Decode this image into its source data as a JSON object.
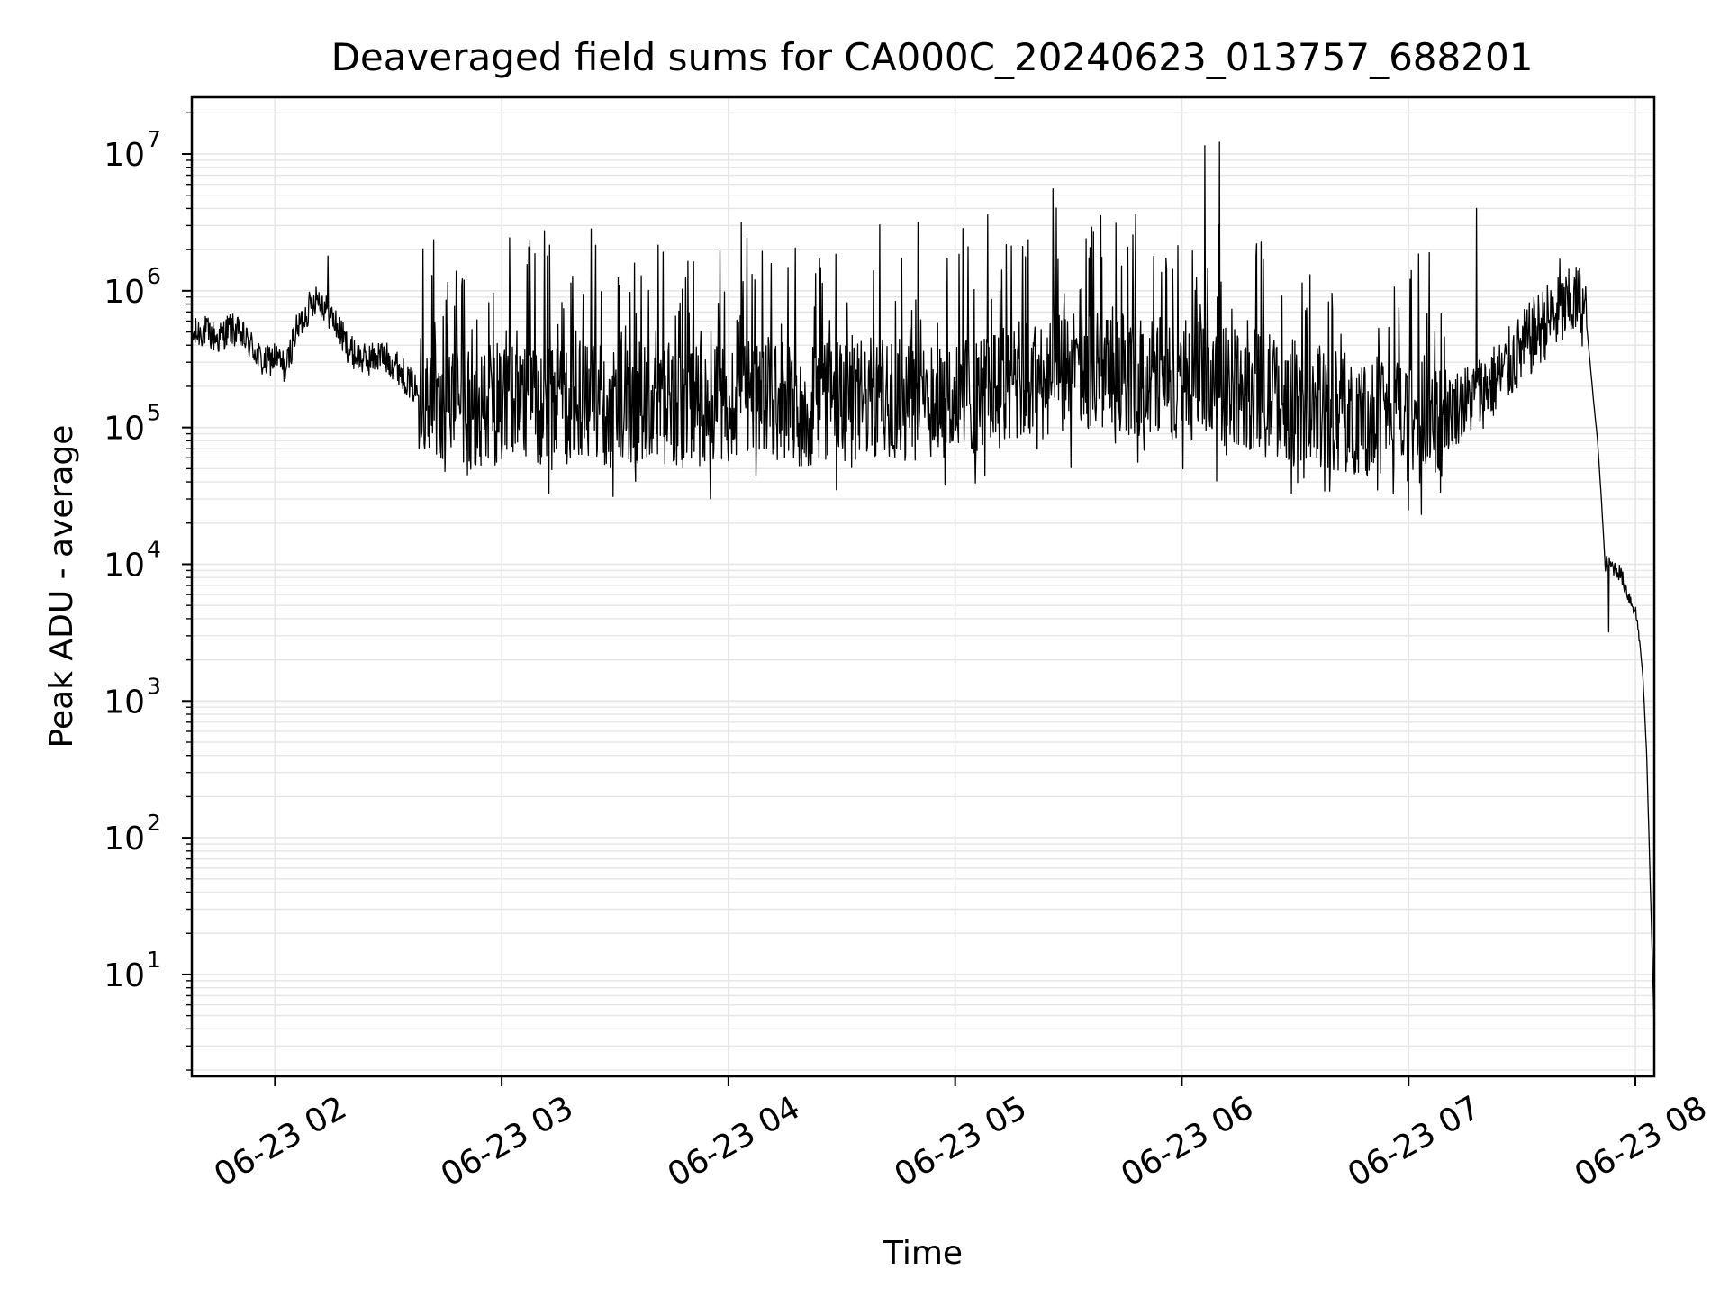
{
  "chart_data": {
    "type": "line",
    "title": "Deaveraged field sums for CA000C_20240623_013757_688201",
    "xlabel": "Time",
    "ylabel": "Peak ADU - average",
    "yscale": "log",
    "ylim": [
      1.8,
      26000000
    ],
    "xlim": [
      "2024-06-23T01:38:00",
      "2024-06-23T08:05:00"
    ],
    "grid": true,
    "line_color": "#000000",
    "grid_color": "#e6e6e6",
    "x_ticks": [
      {
        "label": "06-23 02",
        "time": "2024-06-23T02:00:00"
      },
      {
        "label": "06-23 03",
        "time": "2024-06-23T03:00:00"
      },
      {
        "label": "06-23 04",
        "time": "2024-06-23T04:00:00"
      },
      {
        "label": "06-23 05",
        "time": "2024-06-23T05:00:00"
      },
      {
        "label": "06-23 06",
        "time": "2024-06-23T06:00:00"
      },
      {
        "label": "06-23 07",
        "time": "2024-06-23T07:00:00"
      },
      {
        "label": "06-23 08",
        "time": "2024-06-23T08:00:00"
      }
    ],
    "y_ticks": [
      {
        "base": "10",
        "exp": "1",
        "value": 10
      },
      {
        "base": "10",
        "exp": "2",
        "value": 100
      },
      {
        "base": "10",
        "exp": "3",
        "value": 1000
      },
      {
        "base": "10",
        "exp": "4",
        "value": 10000
      },
      {
        "base": "10",
        "exp": "5",
        "value": 100000
      },
      {
        "base": "10",
        "exp": "6",
        "value": 1000000
      },
      {
        "base": "10",
        "exp": "7",
        "value": 10000000
      }
    ],
    "series": [
      {
        "points": [
          [
            "2024-06-23T01:38:00",
            450000
          ],
          [
            "2024-06-23T01:41:00",
            500000
          ],
          [
            "2024-06-23T01:45:00",
            430000
          ],
          [
            "2024-06-23T01:48:00",
            520000
          ],
          [
            "2024-06-23T01:51:00",
            460000
          ],
          [
            "2024-06-23T01:54:00",
            380000
          ],
          [
            "2024-06-23T01:57:00",
            280000
          ],
          [
            "2024-06-23T02:00:00",
            320000
          ],
          [
            "2024-06-23T02:03:00",
            260000
          ],
          [
            "2024-06-23T02:05:00",
            450000
          ],
          [
            "2024-06-23T02:08:00",
            650000
          ],
          [
            "2024-06-23T02:11:00",
            900000
          ],
          [
            "2024-06-23T02:14:00",
            700000
          ],
          [
            "2024-06-23T02:17:00",
            500000
          ],
          [
            "2024-06-23T02:20:00",
            350000
          ],
          [
            "2024-06-23T02:24:00",
            300000
          ],
          [
            "2024-06-23T02:28:00",
            330000
          ],
          [
            "2024-06-23T02:32:00",
            280000
          ],
          [
            "2024-06-23T02:36:00",
            200000
          ],
          [
            "2024-06-23T02:40:00",
            150000
          ],
          [
            "2024-06-23T02:45:00",
            120000
          ],
          [
            "2024-06-23T02:50:00",
            110000
          ],
          [
            "2024-06-23T03:00:00",
            140000
          ],
          [
            "2024-06-23T03:10:00",
            130000
          ],
          [
            "2024-06-23T03:20:00",
            150000
          ],
          [
            "2024-06-23T03:30:00",
            130000
          ],
          [
            "2024-06-23T03:40:00",
            140000
          ],
          [
            "2024-06-23T03:50:00",
            130000
          ],
          [
            "2024-06-23T04:00:00",
            140000
          ],
          [
            "2024-06-23T04:10:00",
            150000
          ],
          [
            "2024-06-23T04:20:00",
            130000
          ],
          [
            "2024-06-23T04:30:00",
            140000
          ],
          [
            "2024-06-23T04:40:00",
            150000
          ],
          [
            "2024-06-23T04:50:00",
            140000
          ],
          [
            "2024-06-23T05:00:00",
            150000
          ],
          [
            "2024-06-23T05:10:00",
            170000
          ],
          [
            "2024-06-23T05:20:00",
            200000
          ],
          [
            "2024-06-23T05:30:00",
            220000
          ],
          [
            "2024-06-23T05:40:00",
            230000
          ],
          [
            "2024-06-23T05:50:00",
            220000
          ],
          [
            "2024-06-23T06:00:00",
            200000
          ],
          [
            "2024-06-23T06:10:00",
            180000
          ],
          [
            "2024-06-23T06:20:00",
            170000
          ],
          [
            "2024-06-23T06:30:00",
            140000
          ],
          [
            "2024-06-23T06:40:00",
            120000
          ],
          [
            "2024-06-23T06:50:00",
            110000
          ],
          [
            "2024-06-23T07:00:00",
            100000
          ],
          [
            "2024-06-23T07:07:00",
            95000
          ],
          [
            "2024-06-23T07:12:00",
            130000
          ],
          [
            "2024-06-23T07:18:00",
            160000
          ],
          [
            "2024-06-23T07:24:00",
            220000
          ],
          [
            "2024-06-23T07:30:00",
            350000
          ],
          [
            "2024-06-23T07:36:00",
            550000
          ],
          [
            "2024-06-23T07:42:00",
            700000
          ],
          [
            "2024-06-23T07:45:00",
            800000
          ],
          [
            "2024-06-23T07:47:00",
            600000
          ],
          [
            "2024-06-23T07:48:00",
            300000
          ],
          [
            "2024-06-23T07:49:00",
            150000
          ],
          [
            "2024-06-23T07:50:00",
            80000
          ],
          [
            "2024-06-23T07:51:00",
            30000
          ],
          [
            "2024-06-23T07:52:00",
            10000
          ],
          [
            "2024-06-23T07:54:00",
            9500
          ],
          [
            "2024-06-23T07:56:00",
            8500
          ],
          [
            "2024-06-23T07:58:00",
            6000
          ],
          [
            "2024-06-23T08:00:00",
            4500
          ],
          [
            "2024-06-23T08:01:00",
            3000
          ],
          [
            "2024-06-23T08:02:00",
            1500
          ],
          [
            "2024-06-23T08:03:00",
            400
          ],
          [
            "2024-06-23T08:04:00",
            40
          ],
          [
            "2024-06-23T08:05:00",
            4
          ]
        ],
        "noise": [
          {
            "from": "2024-06-23T01:38:00",
            "to": "2024-06-23T02:38:00",
            "spread": 0.12
          },
          {
            "from": "2024-06-23T02:38:00",
            "to": "2024-06-23T07:10:00",
            "spread": 0.45
          },
          {
            "from": "2024-06-23T07:10:00",
            "to": "2024-06-23T07:47:00",
            "spread": 0.28
          },
          {
            "from": "2024-06-23T07:52:00",
            "to": "2024-06-23T08:01:00",
            "spread": 0.06
          }
        ],
        "spikes": [
          [
            "2024-06-23T06:06:00",
            11500000
          ],
          [
            "2024-06-23T06:10:00",
            12200000
          ],
          [
            "2024-06-23T07:18:00",
            4000000
          ],
          [
            "2024-06-23T07:40:00",
            1700000
          ],
          [
            "2024-06-23T02:14:00",
            1800000
          ],
          [
            "2024-06-23T03:12:00",
            1800000
          ],
          [
            "2024-06-23T07:53:00",
            3200
          ]
        ]
      }
    ]
  }
}
